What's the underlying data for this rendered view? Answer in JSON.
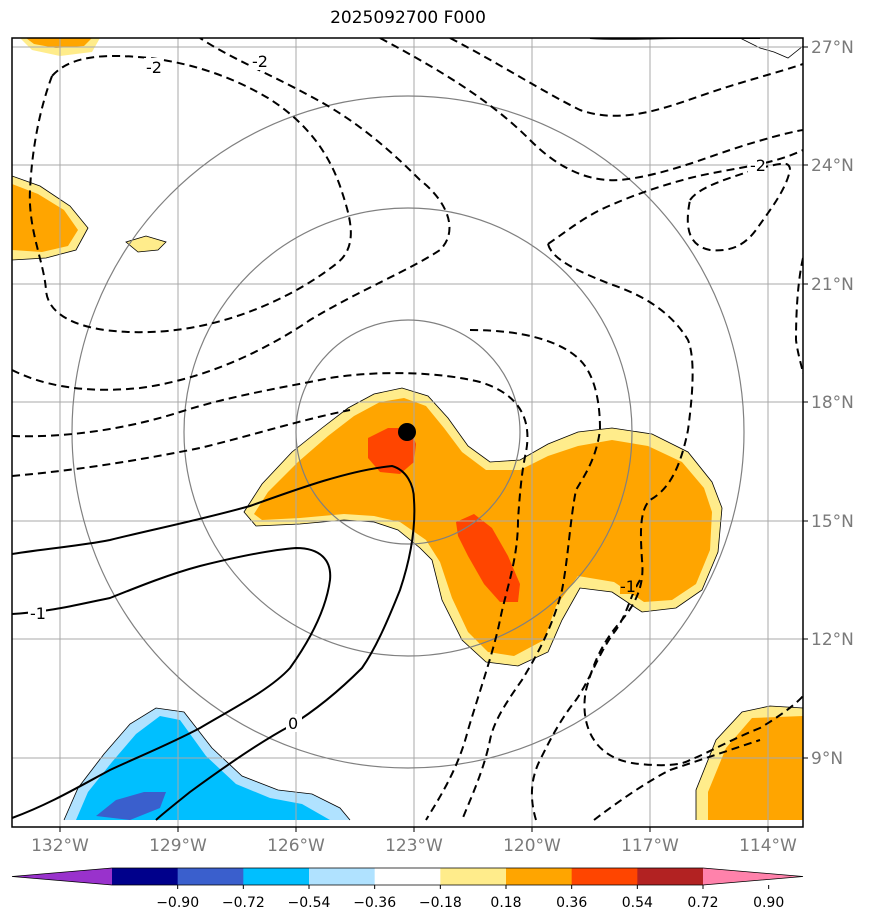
{
  "title": "2025092700 F000",
  "lon_ticks": [
    "132°W",
    "129°W",
    "126°W",
    "123°W",
    "120°W",
    "117°W",
    "114°W"
  ],
  "lat_ticks": [
    "27°N",
    "24°N",
    "21°N",
    "18°N",
    "15°N",
    "12°N",
    "9°N"
  ],
  "colorbar": {
    "labels": [
      "−0.90",
      "−0.72",
      "−0.54",
      "−0.36",
      "−0.18",
      "0.18",
      "0.36",
      "0.54",
      "0.72",
      "0.90"
    ],
    "colors": [
      "#9932cc",
      "#00008b",
      "#3a5fcd",
      "#00bfff",
      "#b0e2ff",
      "#ffffff",
      "#ffec8b",
      "#ffa500",
      "#ff4500",
      "#b22222",
      "#ff82ab"
    ]
  },
  "contour_labels": [
    "-2",
    "-2",
    "-2",
    "-1",
    "0",
    "-1"
  ],
  "center_marker": {
    "lon": -123.0,
    "lat": 17.2
  },
  "range_rings_deg": [
    3,
    6,
    9
  ]
}
